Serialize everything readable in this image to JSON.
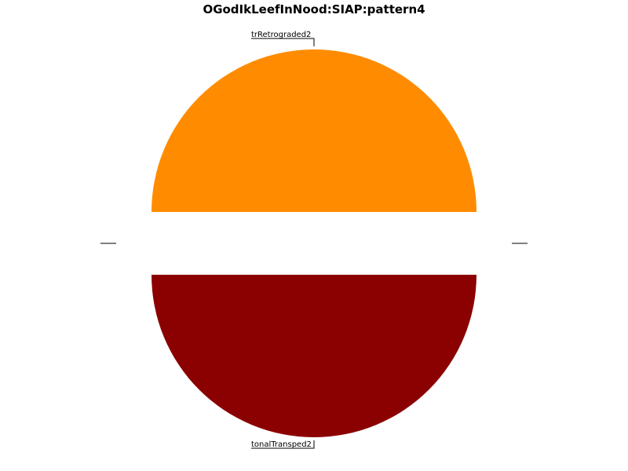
{
  "chart_data": {
    "type": "pie",
    "title": "OGodIkLeefInNood:SIAP:pattern4",
    "slices": [
      {
        "label": "trRetrograded2",
        "value": 50,
        "color": "#ff8c00"
      },
      {
        "label": "tonalTransped2",
        "value": 50,
        "color": "#8b0000"
      }
    ],
    "legend": "none"
  }
}
